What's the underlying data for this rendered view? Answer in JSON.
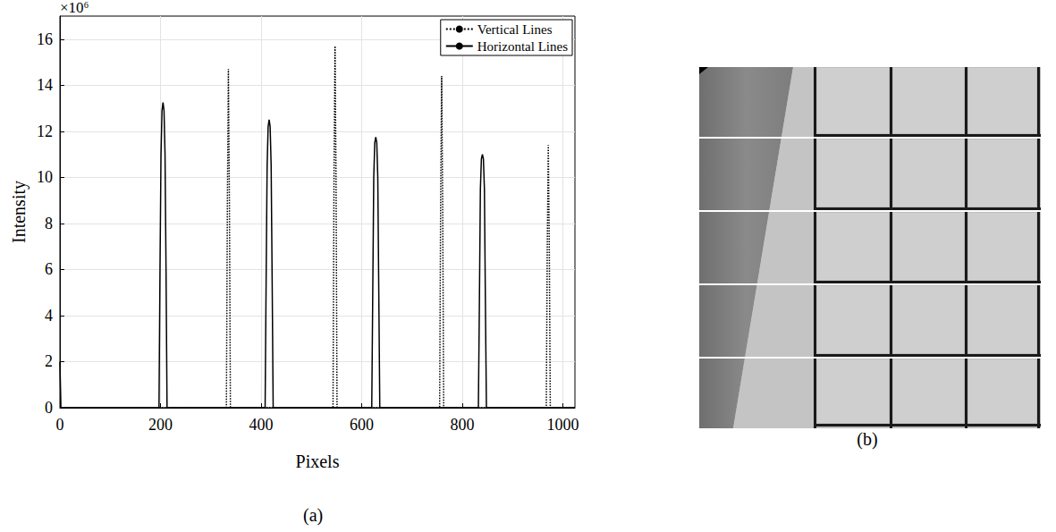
{
  "chart_data": {
    "type": "line",
    "caption": "(a)",
    "x_label": "Pixels",
    "y_label": "Intensity",
    "annotations": [
      "×10⁶"
    ],
    "xlim": [
      0,
      1024
    ],
    "xticks": [
      0,
      200,
      400,
      600,
      800,
      1000
    ],
    "ylim": [
      0,
      17
    ],
    "yticks": [
      0,
      2,
      4,
      6,
      8,
      10,
      12,
      14,
      16
    ],
    "grid": true,
    "legend": "upper right",
    "series": [
      {
        "name": "Vertical Lines",
        "color": "#000000",
        "line_style": "dotted",
        "x": [
          0,
          331,
          333,
          335,
          337,
          339,
          543,
          545,
          547,
          549,
          551,
          755,
          757,
          759,
          761,
          763,
          967,
          969,
          971,
          973,
          975,
          1024
        ],
        "values": [
          0,
          0,
          9,
          14.7,
          9,
          0,
          0,
          10,
          15.7,
          10,
          0,
          0,
          9,
          14.4,
          9,
          0,
          0,
          7,
          11.4,
          7,
          0,
          0
        ]
      },
      {
        "name": "Horizontal Lines",
        "color": "#000000",
        "line_style": "solid",
        "x": [
          0,
          2,
          197,
          199,
          201,
          203,
          205,
          207,
          209,
          211,
          213,
          408,
          410,
          412,
          414,
          416,
          418,
          420,
          422,
          424,
          620,
          622,
          624,
          626,
          628,
          630,
          632,
          634,
          636,
          832,
          834,
          836,
          838,
          840,
          842,
          844,
          846,
          848,
          1024
        ],
        "values": [
          2,
          0,
          0,
          6,
          11,
          12.9,
          13.25,
          12.9,
          11,
          6,
          0,
          0,
          5.5,
          10.5,
          12.2,
          12.5,
          12.2,
          10.5,
          5.5,
          0,
          0,
          5,
          10,
          11.5,
          11.75,
          11.5,
          10,
          5,
          0,
          0,
          4.5,
          9.5,
          10.8,
          11,
          10.8,
          9.5,
          4.5,
          0,
          0
        ]
      }
    ]
  },
  "image": {
    "caption": "(b)"
  }
}
